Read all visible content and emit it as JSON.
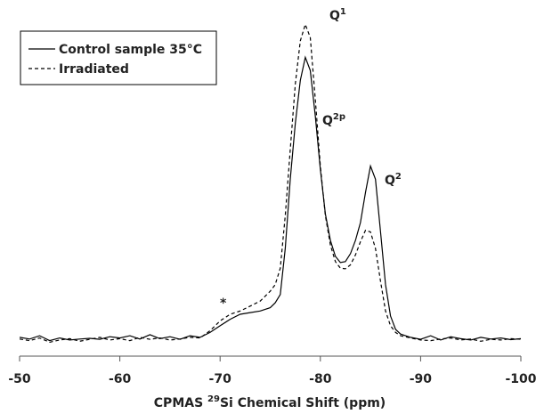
{
  "chart_data": {
    "type": "line",
    "x_label": {
      "prefix": "CPMAS ",
      "sup": "29",
      "rest": "Si Chemical Shift (ppm)"
    },
    "x": [
      -50,
      -51,
      -52,
      -53,
      -54,
      -55,
      -56,
      -57,
      -58,
      -59,
      -60,
      -61,
      -62,
      -63,
      -64,
      -65,
      -66,
      -67,
      -68,
      -69,
      -70,
      -71,
      -72,
      -73,
      -74,
      -75,
      -75.5,
      -76,
      -76.5,
      -77,
      -77.5,
      -78,
      -78.5,
      -79,
      -79.5,
      -80,
      -80.5,
      -81,
      -81.5,
      -82,
      -82.5,
      -83,
      -83.5,
      -84,
      -84.5,
      -85,
      -85.5,
      -86,
      -86.5,
      -87,
      -87.5,
      -88,
      -89,
      -90,
      -91,
      -92,
      -93,
      -94,
      -95,
      -96,
      -97,
      -98,
      -99,
      -100
    ],
    "series": [
      {
        "name": "Control sample 35°C",
        "color": "#000000",
        "dash": "solid",
        "values": [
          3,
          2.5,
          3.5,
          2,
          2.8,
          2.2,
          2.5,
          2.7,
          2.4,
          3.2,
          2.8,
          3.5,
          2.5,
          3.8,
          2.6,
          3.2,
          2.4,
          3.5,
          3,
          4.5,
          6.5,
          8.5,
          10,
          10.5,
          11,
          12,
          13.5,
          16,
          30,
          51,
          68,
          81,
          88,
          84,
          70,
          54,
          40.5,
          32.4,
          27.6,
          25.7,
          26,
          28.4,
          32.4,
          37.8,
          47,
          55,
          51,
          35,
          19,
          9.5,
          5.4,
          4,
          3,
          2.4,
          3.5,
          2.2,
          3.2,
          2.6,
          2.2,
          3,
          2.5,
          2.8,
          2.3,
          2.6
        ]
      },
      {
        "name": "Irradiated",
        "color": "#000000",
        "dash": "dashed",
        "values": [
          2.5,
          2,
          2.8,
          1.5,
          2.2,
          2.6,
          1.8,
          2.4,
          3,
          2.2,
          2.6,
          2,
          3,
          2.4,
          2.8,
          2.2,
          2.5,
          3,
          2.8,
          5,
          8,
          10,
          11,
          12.5,
          14,
          17,
          19,
          24,
          40,
          60,
          80,
          93,
          98,
          94,
          75,
          55,
          40,
          31,
          26,
          24,
          23.8,
          25,
          28,
          32,
          35.5,
          35,
          30,
          20,
          11,
          6.5,
          4.5,
          3.5,
          2.8,
          2.2,
          2,
          2.5,
          2.8,
          2.2,
          2.5,
          1.8,
          2.4,
          2.2,
          2.6,
          2.4
        ]
      }
    ],
    "xlim": [
      -50,
      -100
    ],
    "xticks": [
      -50,
      -60,
      -70,
      -80,
      -90,
      -100
    ],
    "ylim": [
      0,
      100
    ],
    "legend": "upper left",
    "annotations": [
      {
        "text": "Q",
        "sup": "1"
      },
      {
        "text": "Q",
        "sup": "2p"
      },
      {
        "text": "Q",
        "sup": "2"
      },
      {
        "text": "*"
      }
    ]
  }
}
